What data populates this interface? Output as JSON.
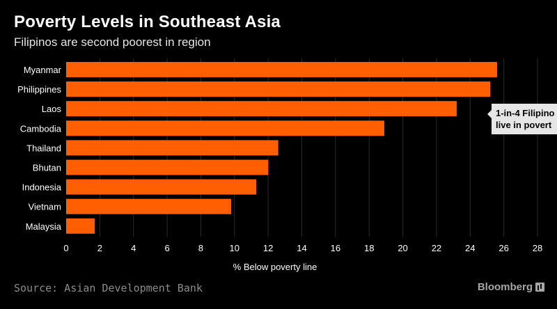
{
  "chart_data": {
    "type": "bar",
    "orientation": "horizontal",
    "title": "Poverty Levels in Southeast Asia",
    "subtitle": "Filipinos are second poorest in region",
    "xlabel": "% Below poverty line",
    "ylabel": "",
    "categories": [
      "Myanmar",
      "Philippines",
      "Laos",
      "Cambodia",
      "Thailand",
      "Bhutan",
      "Indonesia",
      "Vietnam",
      "Malaysia"
    ],
    "values": [
      25.6,
      25.2,
      23.2,
      18.9,
      12.6,
      12.0,
      11.3,
      9.8,
      1.7
    ],
    "xlim": [
      0,
      28
    ],
    "xticks": [
      0,
      2,
      4,
      6,
      8,
      10,
      12,
      14,
      16,
      18,
      20,
      22,
      24,
      26,
      28
    ],
    "grid": true,
    "annotation": {
      "text_line1": "1-in-4 Filipino",
      "text_line2": "live in povert",
      "target": "Philippines"
    },
    "source": "Source: Asian Development Bank",
    "brand": "Bloomberg",
    "colors": {
      "bar": "#ff5f00",
      "background": "#000000",
      "grid": "#2b2b2b",
      "callout": "#e6e6e6"
    }
  }
}
